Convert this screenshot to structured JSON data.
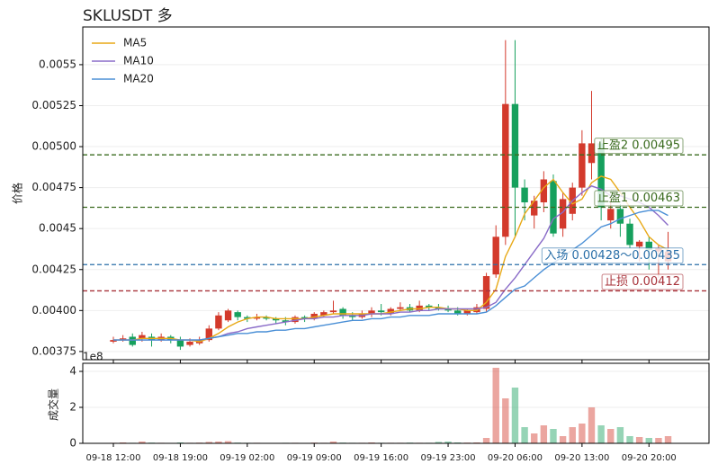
{
  "chart_data": [
    {
      "type": "candlestick",
      "title": "SKLUSDT  多",
      "ylabel": "价格",
      "open": [
        0.00381,
        0.00382,
        0.00384,
        0.00383,
        0.00384,
        0.00382,
        0.00384,
        0.00382,
        0.00379,
        0.0038,
        0.00382,
        0.00389,
        0.00394,
        0.00399,
        0.00396,
        0.00395,
        0.00396,
        0.00395,
        0.00394,
        0.00393,
        0.00396,
        0.00395,
        0.00397,
        0.00399,
        0.00401,
        0.00397,
        0.00396,
        0.00398,
        0.004,
        0.00398,
        0.00401,
        0.00402,
        0.004,
        0.00403,
        0.00402,
        0.00401,
        0.004,
        0.00398,
        0.00399,
        0.00401,
        0.00422,
        0.00445,
        0.00526,
        0.00475,
        0.00458,
        0.00466,
        0.00479,
        0.0045,
        0.00459,
        0.00475,
        0.0049,
        0.00502,
        0.00455,
        0.00462,
        0.00453,
        0.00439,
        0.00442,
        0.00436,
        0.0043
      ],
      "high": [
        0.00384,
        0.00385,
        0.00386,
        0.00387,
        0.00386,
        0.00386,
        0.00385,
        0.00384,
        0.00383,
        0.00384,
        0.00391,
        0.00399,
        0.00401,
        0.004,
        0.00397,
        0.00398,
        0.00397,
        0.00396,
        0.00396,
        0.00397,
        0.00397,
        0.00399,
        0.004,
        0.00406,
        0.00402,
        0.00399,
        0.004,
        0.00402,
        0.00404,
        0.00402,
        0.00405,
        0.00404,
        0.00406,
        0.00404,
        0.00404,
        0.00403,
        0.00402,
        0.00401,
        0.00404,
        0.00423,
        0.00452,
        0.00565,
        0.00565,
        0.0048,
        0.0047,
        0.00485,
        0.00483,
        0.00472,
        0.00478,
        0.0051,
        0.00534,
        0.00505,
        0.00468,
        0.00465,
        0.00456,
        0.00443,
        0.00445,
        0.0044,
        0.00448
      ],
      "low": [
        0.0038,
        0.00381,
        0.00378,
        0.00381,
        0.00378,
        0.00381,
        0.0038,
        0.00376,
        0.00378,
        0.00379,
        0.00381,
        0.00388,
        0.00393,
        0.00394,
        0.00393,
        0.00394,
        0.00394,
        0.00392,
        0.00391,
        0.00392,
        0.00393,
        0.00394,
        0.00396,
        0.00398,
        0.00395,
        0.00394,
        0.00395,
        0.00396,
        0.00397,
        0.00397,
        0.004,
        0.00399,
        0.00399,
        0.004,
        0.004,
        0.00399,
        0.00397,
        0.00397,
        0.00398,
        0.00399,
        0.0042,
        0.0044,
        0.00445,
        0.00455,
        0.0045,
        0.0046,
        0.00445,
        0.00445,
        0.00455,
        0.0047,
        0.0048,
        0.00455,
        0.0045,
        0.00445,
        0.00438,
        0.0043,
        0.00425,
        0.0042,
        0.00425
      ],
      "close": [
        0.00382,
        0.00383,
        0.00379,
        0.00385,
        0.00382,
        0.00384,
        0.00382,
        0.00378,
        0.00381,
        0.00382,
        0.00389,
        0.00397,
        0.004,
        0.00396,
        0.00395,
        0.00396,
        0.00395,
        0.00394,
        0.00393,
        0.00396,
        0.00395,
        0.00398,
        0.00399,
        0.004,
        0.00397,
        0.00396,
        0.00398,
        0.004,
        0.00399,
        0.00401,
        0.00402,
        0.004,
        0.00403,
        0.00402,
        0.00401,
        0.004,
        0.00398,
        0.004,
        0.00402,
        0.00421,
        0.00445,
        0.00526,
        0.00475,
        0.00466,
        0.00467,
        0.0048,
        0.00447,
        0.00468,
        0.00475,
        0.00502,
        0.00502,
        0.00463,
        0.00462,
        0.00453,
        0.0044,
        0.00442,
        0.00437,
        0.00438,
        0.00436
      ],
      "up_color": "#d33a2c",
      "down_color": "#16a05d",
      "series": [
        {
          "name": "MA5",
          "color": "#e8a917",
          "values": [
            0.00382,
            0.00382,
            0.00382,
            0.00383,
            0.00383,
            0.00383,
            0.00383,
            0.00382,
            0.00382,
            0.00381,
            0.00383,
            0.00386,
            0.0039,
            0.00393,
            0.00395,
            0.00396,
            0.00396,
            0.00395,
            0.00395,
            0.00395,
            0.00395,
            0.00396,
            0.00397,
            0.00398,
            0.00398,
            0.00398,
            0.00398,
            0.00398,
            0.00398,
            0.00399,
            0.004,
            0.00401,
            0.00401,
            0.00402,
            0.00402,
            0.00401,
            0.00401,
            0.004,
            0.004,
            0.00405,
            0.00413,
            0.00433,
            0.00445,
            0.00459,
            0.00467,
            0.00475,
            0.0048,
            0.00472,
            0.00465,
            0.00468,
            0.00478,
            0.00482,
            0.0048,
            0.00472,
            0.00463,
            0.00455,
            0.00445,
            0.0044,
            0.00437
          ]
        },
        {
          "name": "MA10",
          "color": "#8a6cc8",
          "values": [
            0.00382,
            0.00382,
            0.00382,
            0.00382,
            0.00382,
            0.00382,
            0.00382,
            0.00382,
            0.00382,
            0.00382,
            0.00383,
            0.00384,
            0.00386,
            0.00387,
            0.00389,
            0.0039,
            0.00391,
            0.00392,
            0.00393,
            0.00394,
            0.00395,
            0.00395,
            0.00396,
            0.00396,
            0.00397,
            0.00397,
            0.00397,
            0.00398,
            0.00398,
            0.00398,
            0.00399,
            0.00399,
            0.004,
            0.004,
            0.00401,
            0.00401,
            0.00401,
            0.00401,
            0.00401,
            0.00402,
            0.00405,
            0.00413,
            0.0042,
            0.00428,
            0.00436,
            0.00444,
            0.00456,
            0.0046,
            0.00467,
            0.00472,
            0.00476,
            0.00474,
            0.0047,
            0.0047,
            0.00468,
            0.00466,
            0.00463,
            0.00458,
            0.00452
          ]
        },
        {
          "name": "MA20",
          "color": "#4a8fd6",
          "values": [
            0.00382,
            0.00382,
            0.00382,
            0.00382,
            0.00382,
            0.00382,
            0.00382,
            0.00382,
            0.00382,
            0.00382,
            0.00383,
            0.00384,
            0.00385,
            0.00386,
            0.00386,
            0.00387,
            0.00387,
            0.00388,
            0.00388,
            0.00389,
            0.00389,
            0.0039,
            0.00391,
            0.00392,
            0.00393,
            0.00394,
            0.00394,
            0.00395,
            0.00395,
            0.00396,
            0.00396,
            0.00397,
            0.00397,
            0.00397,
            0.00398,
            0.00398,
            0.00398,
            0.00398,
            0.00398,
            0.00399,
            0.00403,
            0.00408,
            0.00413,
            0.00415,
            0.0042,
            0.00425,
            0.00429,
            0.00433,
            0.00437,
            0.00441,
            0.00446,
            0.00451,
            0.00453,
            0.00456,
            0.00458,
            0.0046,
            0.00461,
            0.00461,
            0.00458
          ]
        }
      ],
      "levels": [
        {
          "label": "止盈2 0.00495",
          "value": 0.00495,
          "color": "#3a6b1e"
        },
        {
          "label": "止盈1 0.00463",
          "value": 0.00463,
          "color": "#3a6b1e"
        },
        {
          "label": "入场 0.00428～0.00435",
          "value": 0.00428,
          "color": "#2a6fa8"
        },
        {
          "label": "止损 0.00412",
          "value": 0.00412,
          "color": "#a8323a"
        }
      ],
      "ylim": [
        0.0037,
        0.00573
      ],
      "yticks": [
        0.00375,
        {
          "value": 0.004,
          "label": "0.00400"
        },
        0.00425,
        0.0045,
        0.00475,
        {
          "value": 0.005,
          "label": "0.00500"
        },
        0.00525,
        0.0055
      ],
      "grid": true,
      "legend": "upper left"
    },
    {
      "type": "bar",
      "ylabel": "成交量",
      "offset_label": "1e8",
      "categories": [
        "09-18 12:00",
        null,
        null,
        null,
        null,
        null,
        null,
        "09-18 19:00",
        null,
        null,
        null,
        null,
        null,
        null,
        "09-19 02:00",
        null,
        null,
        null,
        null,
        null,
        null,
        "09-19 09:00",
        null,
        null,
        null,
        null,
        null,
        null,
        "09-19 16:00",
        null,
        null,
        null,
        null,
        null,
        null,
        "09-19 23:00",
        null,
        null,
        null,
        null,
        null,
        null,
        "09-20 06:00",
        null,
        null,
        null,
        null,
        null,
        null,
        "09-20 13:00",
        null,
        null,
        null,
        null,
        null,
        null,
        "09-20 20:00",
        null,
        null
      ],
      "values": [
        0.03,
        0.05,
        0.03,
        0.1,
        0.04,
        0.03,
        0.02,
        0.05,
        0.03,
        0.04,
        0.08,
        0.1,
        0.12,
        0.04,
        0.03,
        0.03,
        0.02,
        0.02,
        0.03,
        0.03,
        0.02,
        0.04,
        0.03,
        0.1,
        0.04,
        0.03,
        0.03,
        0.05,
        0.03,
        0.03,
        0.03,
        0.04,
        0.03,
        0.03,
        0.08,
        0.1,
        0.05,
        0.04,
        0.05,
        0.3,
        4.2,
        2.5,
        3.1,
        0.9,
        0.55,
        1.0,
        0.8,
        0.4,
        0.9,
        1.1,
        2.0,
        1.0,
        0.8,
        0.9,
        0.4,
        0.35,
        0.3,
        0.3,
        0.4
      ],
      "ylim": [
        0,
        4.45
      ],
      "yticks": [
        0,
        2,
        4
      ],
      "grid": true
    }
  ]
}
